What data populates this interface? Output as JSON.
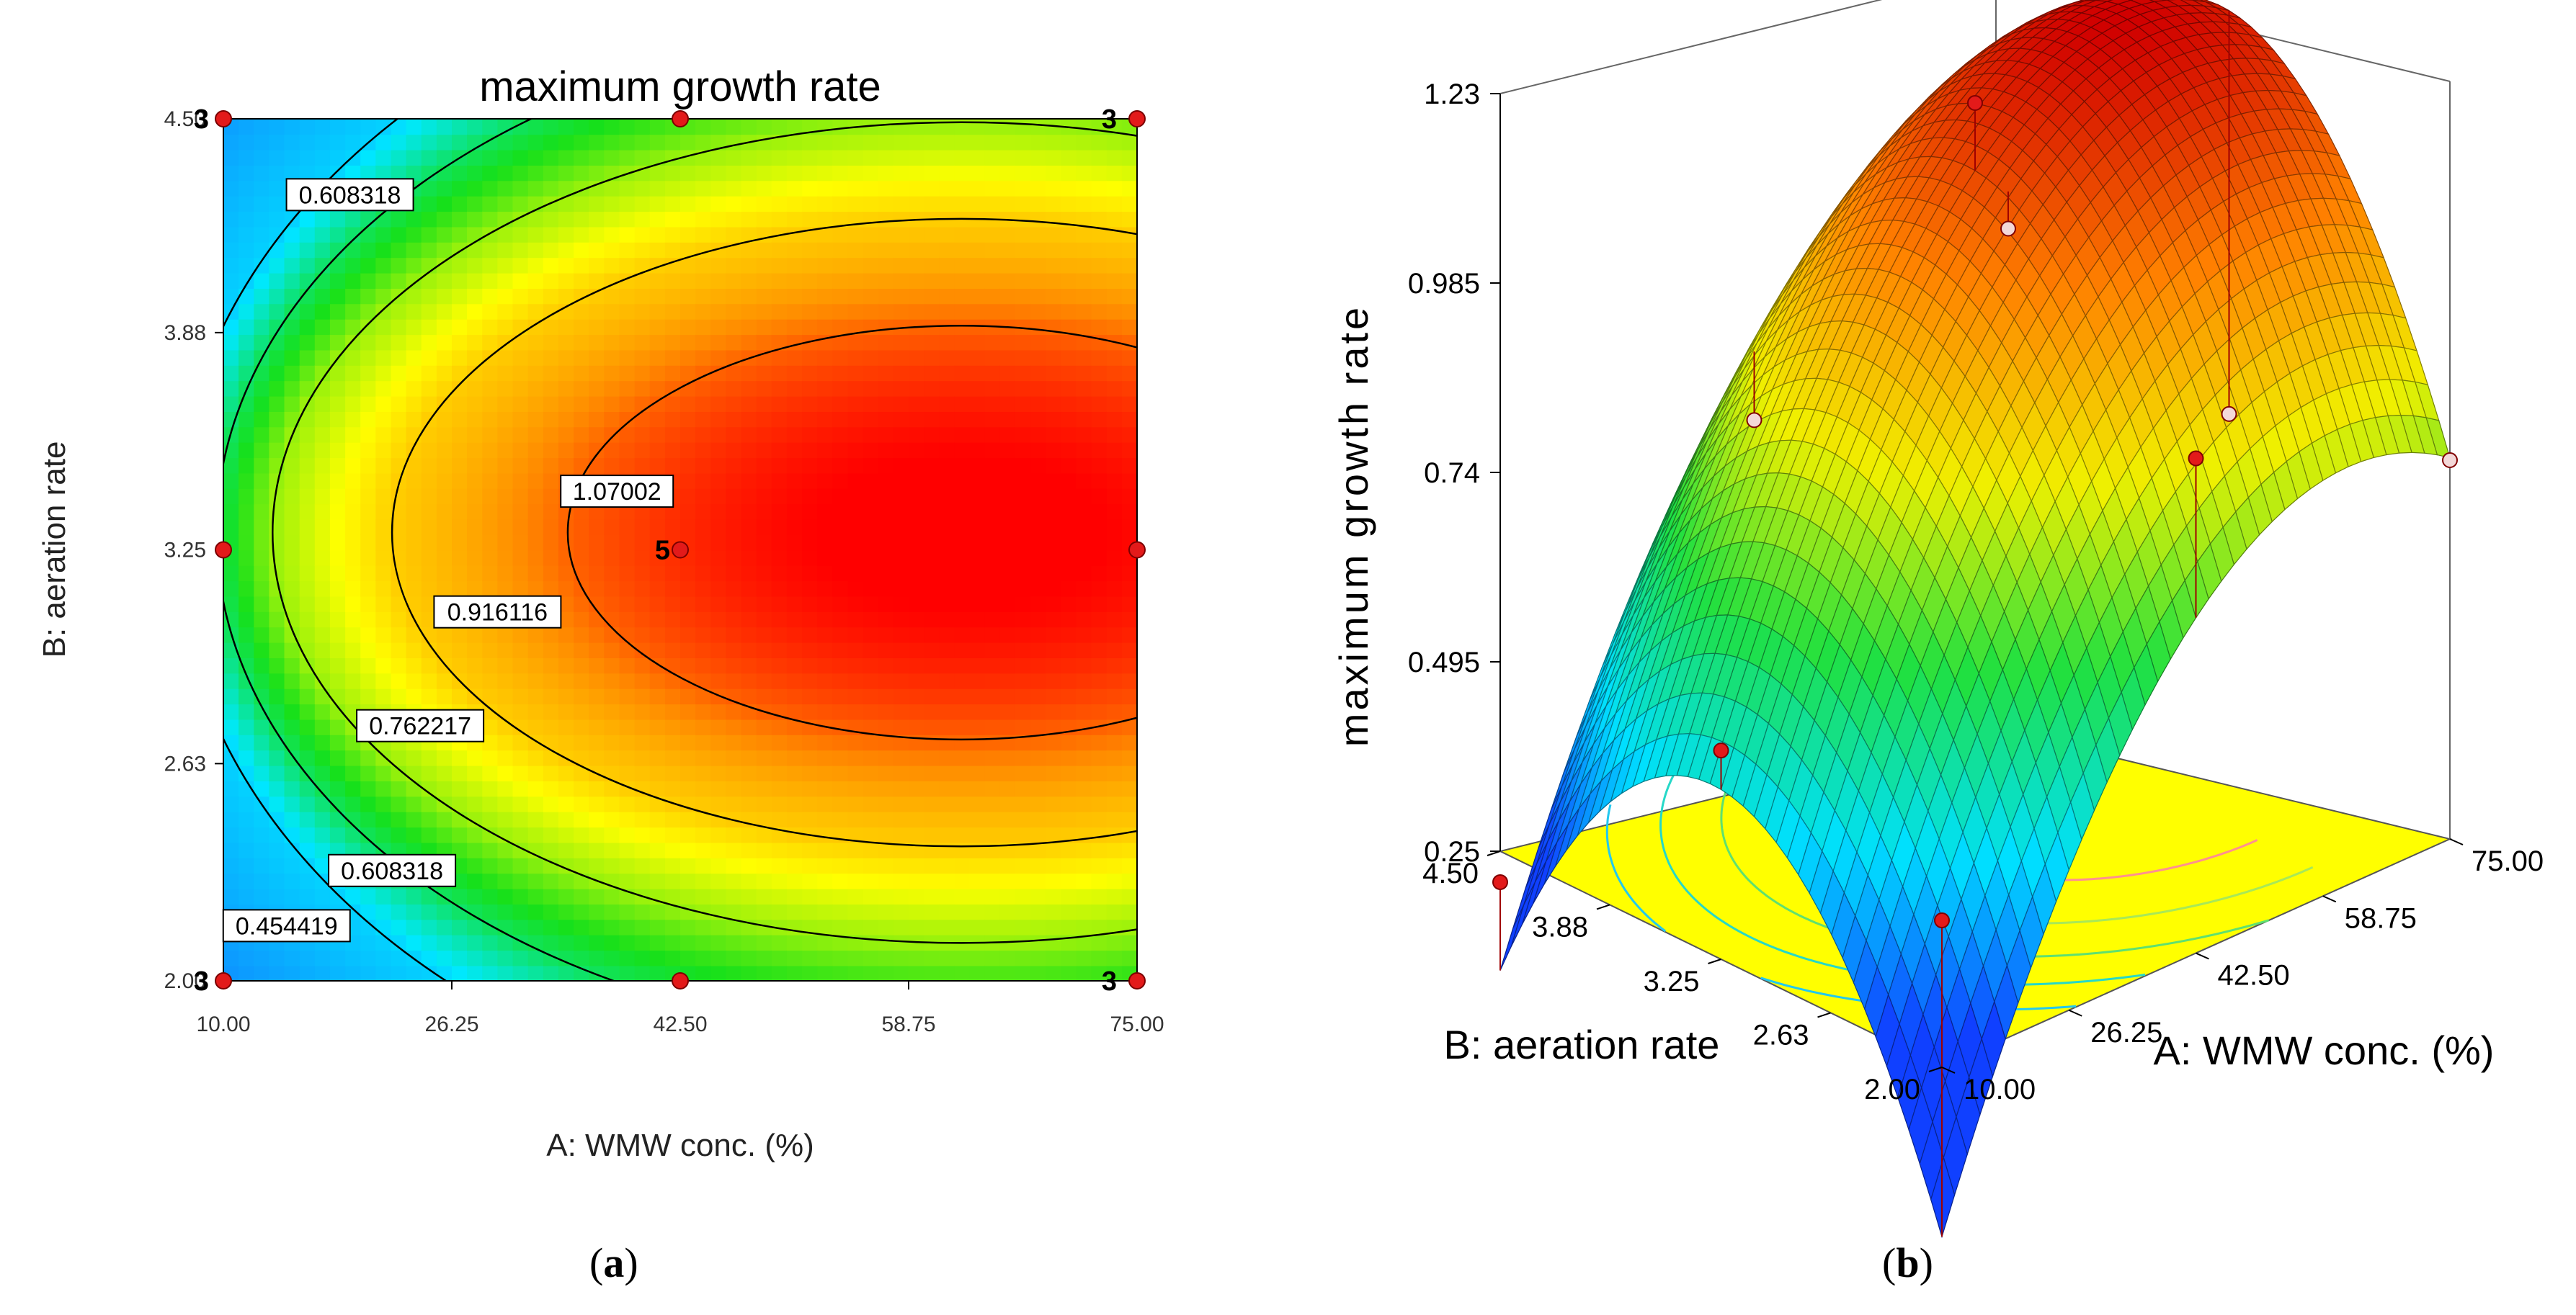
{
  "chart_data": [
    {
      "type": "contour",
      "panel_label": "a",
      "title": "maximum growth rate",
      "xlabel": "A: WMW conc. (%)",
      "ylabel": "B: aeration rate",
      "xlim": [
        10.0,
        75.0
      ],
      "ylim": [
        2.0,
        4.5
      ],
      "x_ticks": [
        "10.00",
        "26.25",
        "42.50",
        "58.75",
        "75.00"
      ],
      "y_ticks": [
        "2.00",
        "2.63",
        "3.25",
        "3.88",
        "4.50"
      ],
      "color_map": [
        "#1a49ff",
        "#00e8ff",
        "#16e01a",
        "#ffff00",
        "#ff8800",
        "#ff0000"
      ],
      "contour_labels": [
        {
          "text": "0.608318",
          "x": 19.0,
          "y": 4.28
        },
        {
          "text": "1.07002",
          "x": 38.0,
          "y": 3.42
        },
        {
          "text": "0.916116",
          "x": 29.5,
          "y": 3.07
        },
        {
          "text": "0.762217",
          "x": 24.0,
          "y": 2.74
        },
        {
          "text": "0.608318",
          "x": 22.0,
          "y": 2.32
        },
        {
          "text": "0.454419",
          "x": 14.5,
          "y": 2.16
        }
      ],
      "contours": [
        {
          "level": 0.454419,
          "cx": 62.5,
          "cy": 3.3,
          "rx": 56.0,
          "ry": 1.72
        },
        {
          "level": 0.608318,
          "cx": 62.5,
          "cy": 3.3,
          "rx": 53.0,
          "ry": 1.47
        },
        {
          "level": 0.762217,
          "cx": 62.5,
          "cy": 3.3,
          "rx": 49.0,
          "ry": 1.19
        },
        {
          "level": 0.916116,
          "cx": 62.5,
          "cy": 3.3,
          "rx": 40.5,
          "ry": 0.91
        },
        {
          "level": 1.07002,
          "cx": 62.5,
          "cy": 3.3,
          "rx": 28.0,
          "ry": 0.6
        }
      ],
      "design_points": [
        {
          "x": 10.0,
          "y": 4.5,
          "count": "3"
        },
        {
          "x": 42.5,
          "y": 4.5,
          "count": ""
        },
        {
          "x": 75.0,
          "y": 4.5,
          "count": "3"
        },
        {
          "x": 10.0,
          "y": 3.25,
          "count": ""
        },
        {
          "x": 42.5,
          "y": 3.25,
          "count": "5"
        },
        {
          "x": 75.0,
          "y": 3.25,
          "count": ""
        },
        {
          "x": 10.0,
          "y": 2.0,
          "count": "3"
        },
        {
          "x": 42.5,
          "y": 2.0,
          "count": ""
        },
        {
          "x": 75.0,
          "y": 2.0,
          "count": "3"
        }
      ]
    },
    {
      "type": "surface3d",
      "panel_label": "b",
      "zlabel": "maximum growth rate",
      "xlabel": "A: WMW conc. (%)",
      "ylabel": "B: aeration rate",
      "x_ticks": [
        "10.00",
        "26.25",
        "42.50",
        "58.75",
        "75.00"
      ],
      "y_ticks": [
        "2.00",
        "2.63",
        "3.25",
        "3.88",
        "4.50"
      ],
      "z_ticks": [
        "0.25",
        "0.495",
        "0.74",
        "0.985",
        "1.23"
      ],
      "zlim": [
        0.25,
        1.23
      ],
      "surface_model": {
        "peak": 1.23,
        "x_center": 62.0,
        "y_center": 3.3,
        "x_coef": 0.000281,
        "y_coef": 0.26
      },
      "floor_color": "#ffff00",
      "design_points": [
        {
          "x": 42.5,
          "y": 3.25,
          "z": 1.21
        },
        {
          "x": 10.0,
          "y": 2.0,
          "z": 0.44
        },
        {
          "x": 75.0,
          "y": 4.5,
          "z": 0.76
        },
        {
          "x": 42.5,
          "y": 4.5,
          "z": 0.66
        },
        {
          "x": 10.0,
          "y": 3.25,
          "z": 0.52
        },
        {
          "x": 75.0,
          "y": 3.25,
          "z": 0.66
        },
        {
          "x": 10.0,
          "y": 4.5,
          "z": 0.21
        },
        {
          "x": 42.5,
          "y": 2.0,
          "z": 0.89
        },
        {
          "x": 75.0,
          "y": 2.0,
          "z": 0.74
        }
      ]
    }
  ]
}
